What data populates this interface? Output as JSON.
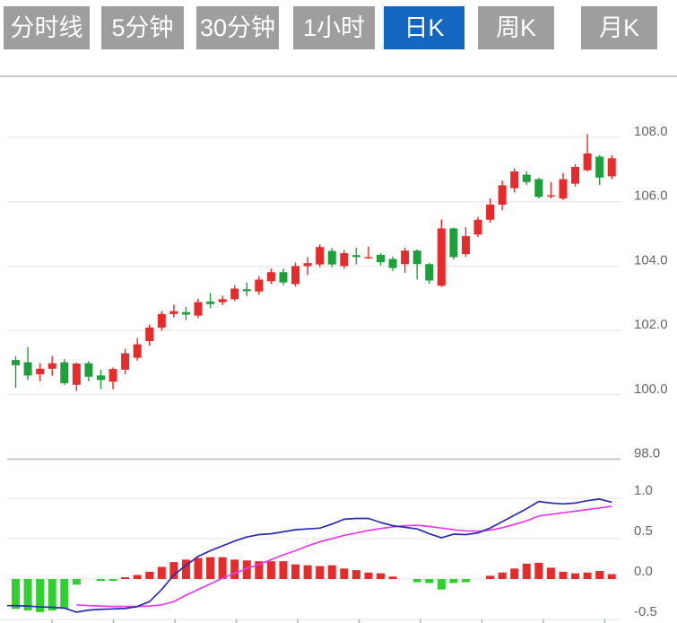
{
  "toolbar": {
    "buttons": [
      {
        "label": "分时线",
        "active": false
      },
      {
        "label": "5分钟",
        "active": false
      },
      {
        "label": "30分钟",
        "active": false
      },
      {
        "label": "1小时",
        "active": false
      },
      {
        "label": "日K",
        "active": true
      },
      {
        "label": "周K",
        "active": false
      },
      {
        "label": "月K",
        "active": false
      }
    ],
    "button_color": "#9e9e9e",
    "button_active_color": "#1467c0",
    "button_text_color": "#ffffff"
  },
  "colors": {
    "candle_up": "#e52b2b",
    "candle_down": "#1da03c",
    "hist_up": "#e52b2b",
    "hist_down": "#2fd030",
    "dif_line": "#2a2ab2",
    "dea_line": "#ea3bea",
    "gridline": "#e4e4e4",
    "separator": "#c9c9c9",
    "axis_text": "#666666",
    "x_tick": "#aab4c8"
  },
  "chart_data": {
    "type": "candlestick",
    "title": "",
    "timeframe_selected": "日K",
    "price_axis": {
      "side": "right",
      "range_gridlines": [
        98,
        108
      ],
      "ticks": [
        {
          "label": "108.0",
          "value": 108.0
        },
        {
          "label": "106.0",
          "value": 106.0
        },
        {
          "label": "104.0",
          "value": 104.0
        },
        {
          "label": "102.0",
          "value": 102.0
        },
        {
          "label": "100.0",
          "value": 100.0
        },
        {
          "label": "98.0",
          "value": 98.0
        }
      ]
    },
    "macd_axis": {
      "side": "right",
      "range": [
        -0.5,
        1.0
      ],
      "ticks": [
        {
          "label": "1.0",
          "value": 1.0
        },
        {
          "label": "0.5",
          "value": 0.5
        },
        {
          "label": "0.0",
          "value": 0.0
        },
        {
          "label": "-0.5",
          "value": -0.5
        }
      ]
    },
    "x_axis": {
      "tick_count": 10,
      "labels": []
    },
    "ohlc_order": "open,high,low,close",
    "candles": [
      [
        101.08,
        101.2,
        100.22,
        100.92
      ],
      [
        101.01,
        101.48,
        100.46,
        100.6
      ],
      [
        100.64,
        100.98,
        100.42,
        100.81
      ],
      [
        100.81,
        101.2,
        100.59,
        100.98
      ],
      [
        101.01,
        101.11,
        100.31,
        100.36
      ],
      [
        100.31,
        101.0,
        100.12,
        100.97
      ],
      [
        100.98,
        101.05,
        100.42,
        100.56
      ],
      [
        100.6,
        100.78,
        100.17,
        100.46
      ],
      [
        100.41,
        100.85,
        100.17,
        100.8
      ],
      [
        100.78,
        101.43,
        100.64,
        101.29
      ],
      [
        101.15,
        101.76,
        101.06,
        101.57
      ],
      [
        101.67,
        102.18,
        101.53,
        102.09
      ],
      [
        102.09,
        102.6,
        101.99,
        102.51
      ],
      [
        102.51,
        102.8,
        102.4,
        102.6
      ],
      [
        102.57,
        102.74,
        102.32,
        102.49
      ],
      [
        102.46,
        102.99,
        102.38,
        102.88
      ],
      [
        102.9,
        103.16,
        102.69,
        102.82
      ],
      [
        102.88,
        103.08,
        102.79,
        102.97
      ],
      [
        102.97,
        103.41,
        102.91,
        103.3
      ],
      [
        103.28,
        103.49,
        103.07,
        103.22
      ],
      [
        103.21,
        103.69,
        103.11,
        103.58
      ],
      [
        103.53,
        103.92,
        103.44,
        103.81
      ],
      [
        103.81,
        103.92,
        103.41,
        103.49
      ],
      [
        103.44,
        104.11,
        103.36,
        104.0
      ],
      [
        104.0,
        104.28,
        103.72,
        104.09
      ],
      [
        104.05,
        104.67,
        103.97,
        104.59
      ],
      [
        104.47,
        104.56,
        103.97,
        104.05
      ],
      [
        104.0,
        104.5,
        103.92,
        104.4
      ],
      [
        104.34,
        104.57,
        104.05,
        104.28
      ],
      [
        104.27,
        104.61,
        104.22,
        104.28
      ],
      [
        104.35,
        104.4,
        104.02,
        104.12
      ],
      [
        104.22,
        104.3,
        103.85,
        103.94
      ],
      [
        104.06,
        104.57,
        103.79,
        104.48
      ],
      [
        104.48,
        104.52,
        103.58,
        104.06
      ],
      [
        104.06,
        104.1,
        103.45,
        103.55
      ],
      [
        103.39,
        105.45,
        103.35,
        105.17
      ],
      [
        105.17,
        105.2,
        104.2,
        104.28
      ],
      [
        104.37,
        105.21,
        104.28,
        104.93
      ],
      [
        104.98,
        105.53,
        104.9,
        105.44
      ],
      [
        105.44,
        106.1,
        105.35,
        105.91
      ],
      [
        105.91,
        106.66,
        105.73,
        106.51
      ],
      [
        106.42,
        107.03,
        106.29,
        106.94
      ],
      [
        106.84,
        106.94,
        106.52,
        106.61
      ],
      [
        106.7,
        106.75,
        106.1,
        106.15
      ],
      [
        106.19,
        106.61,
        106.1,
        106.2
      ],
      [
        106.1,
        106.89,
        106.05,
        106.7
      ],
      [
        106.56,
        107.17,
        106.47,
        107.08
      ],
      [
        106.98,
        108.1,
        106.94,
        107.5
      ],
      [
        107.4,
        107.45,
        106.52,
        106.75
      ],
      [
        106.79,
        107.44,
        106.7,
        107.35
      ]
    ],
    "macd": {
      "histogram": [
        -0.37,
        -0.39,
        -0.41,
        -0.39,
        -0.37,
        -0.07,
        0,
        -0.02,
        -0.02,
        0.02,
        0.05,
        0.09,
        0.15,
        0.21,
        0.24,
        0.26,
        0.27,
        0.27,
        0.24,
        0.23,
        0.22,
        0.22,
        0.22,
        0.18,
        0.17,
        0.16,
        0.17,
        0.13,
        0.11,
        0.08,
        0.07,
        0.03,
        0,
        -0.04,
        -0.05,
        -0.13,
        -0.05,
        -0.04,
        0,
        0.04,
        0.08,
        0.13,
        0.19,
        0.2,
        0.14,
        0.09,
        0.07,
        0.08,
        0.1,
        0.06
      ],
      "dif": [
        -0.33,
        -0.335,
        -0.345,
        -0.35,
        -0.36,
        -0.41,
        -0.385,
        -0.375,
        -0.37,
        -0.365,
        -0.34,
        -0.28,
        -0.13,
        0.05,
        0.17,
        0.28,
        0.35,
        0.41,
        0.47,
        0.52,
        0.55,
        0.56,
        0.585,
        0.61,
        0.62,
        0.63,
        0.68,
        0.74,
        0.75,
        0.75,
        0.7,
        0.66,
        0.64,
        0.62,
        0.56,
        0.51,
        0.555,
        0.55,
        0.57,
        0.63,
        0.71,
        0.79,
        0.87,
        0.96,
        0.94,
        0.93,
        0.94,
        0.97,
        0.99,
        0.95
      ],
      "dea": [
        null,
        null,
        null,
        null,
        null,
        -0.32,
        -0.33,
        -0.335,
        -0.34,
        -0.34,
        -0.34,
        -0.335,
        -0.32,
        -0.28,
        -0.2,
        -0.13,
        -0.06,
        0.01,
        0.07,
        0.13,
        0.18,
        0.24,
        0.3,
        0.35,
        0.41,
        0.46,
        0.5,
        0.54,
        0.57,
        0.6,
        0.625,
        0.645,
        0.66,
        0.665,
        0.65,
        0.63,
        0.61,
        0.595,
        0.59,
        0.605,
        0.635,
        0.675,
        0.72,
        0.78,
        0.8,
        0.82,
        0.84,
        0.86,
        0.88,
        0.9
      ]
    }
  }
}
